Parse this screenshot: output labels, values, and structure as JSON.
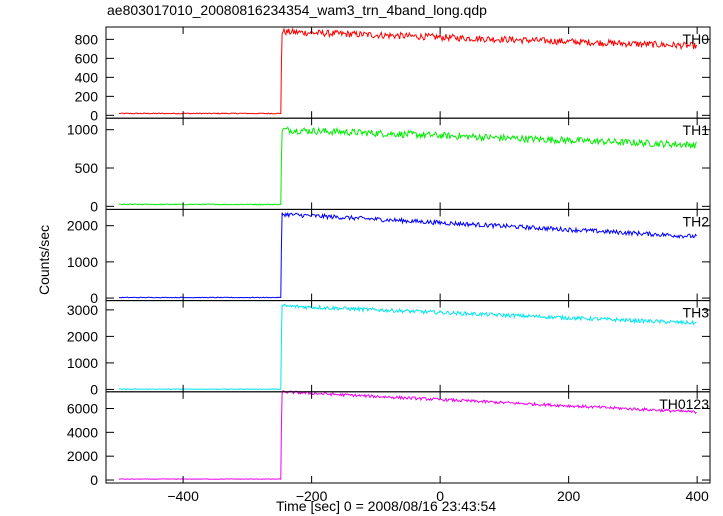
{
  "title": "ae803017010_20080816234354_wam3_trn_4band_long.qdp",
  "chart_data": {
    "type": "line",
    "xlabel": "Time [sec] 0 = 2008/08/16 23:43:54",
    "ylabel": "Counts/sec",
    "xlim": [
      -520,
      420
    ],
    "xticks": [
      -400,
      -200,
      0,
      200,
      400
    ],
    "trigger_time": -248,
    "data_start": -500,
    "data_end": 400,
    "panels": [
      {
        "name": "TH0",
        "color": "#ff0000",
        "ylim": [
          -30,
          930
        ],
        "yticks": [
          0,
          200,
          400,
          600,
          800
        ],
        "pre": 20,
        "peak": 880,
        "end": 730,
        "noise": 70
      },
      {
        "name": "TH1",
        "color": "#00ee00",
        "ylim": [
          -40,
          1150
        ],
        "yticks": [
          0,
          500,
          1000
        ],
        "pre": 25,
        "peak": 1000,
        "end": 800,
        "noise": 90
      },
      {
        "name": "TH2",
        "color": "#0000ff",
        "ylim": [
          -70,
          2450
        ],
        "yticks": [
          0,
          1000,
          2000
        ],
        "pre": 15,
        "peak": 2320,
        "end": 1700,
        "noise": 120
      },
      {
        "name": "TH3",
        "color": "#00e5ee",
        "ylim": [
          -90,
          3350
        ],
        "yticks": [
          0,
          1000,
          2000,
          3000
        ],
        "pre": 10,
        "peak": 3150,
        "end": 2500,
        "noise": 140
      },
      {
        "name": "TH0123",
        "color": "#ee00ee",
        "ylim": [
          -250,
          7400
        ],
        "yticks": [
          0,
          2000,
          4000,
          6000
        ],
        "pre": 80,
        "peak": 7400,
        "end": 5700,
        "noise": 240
      }
    ]
  }
}
